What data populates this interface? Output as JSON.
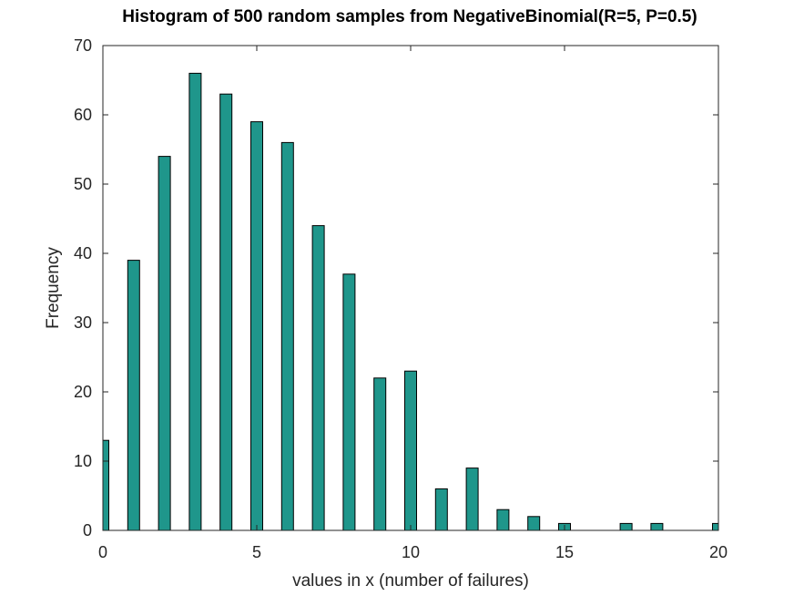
{
  "chart_data": {
    "type": "bar",
    "title": "Histogram of 500 random samples from NegativeBinomial(R=5, P=0.5)",
    "xlabel": "values in x (number of failures)",
    "ylabel": "Frequency",
    "xlim": [
      0,
      20
    ],
    "ylim": [
      0,
      70
    ],
    "xticks": [
      "0",
      "5",
      "10",
      "15",
      "20"
    ],
    "yticks": [
      "0",
      "10",
      "20",
      "30",
      "40",
      "50",
      "60",
      "70"
    ],
    "grid": false,
    "series": [
      {
        "name": "Frequency",
        "x": [
          0,
          1,
          2,
          3,
          4,
          5,
          6,
          7,
          8,
          9,
          10,
          11,
          12,
          13,
          14,
          15,
          17,
          18,
          20
        ],
        "values": [
          13,
          39,
          54,
          66,
          63,
          59,
          56,
          44,
          37,
          22,
          23,
          6,
          9,
          3,
          2,
          1,
          1,
          1,
          1
        ]
      }
    ],
    "colors": {
      "bar_fill": "#1f968b",
      "bar_edge": "#000000",
      "axis": "#262626"
    }
  }
}
